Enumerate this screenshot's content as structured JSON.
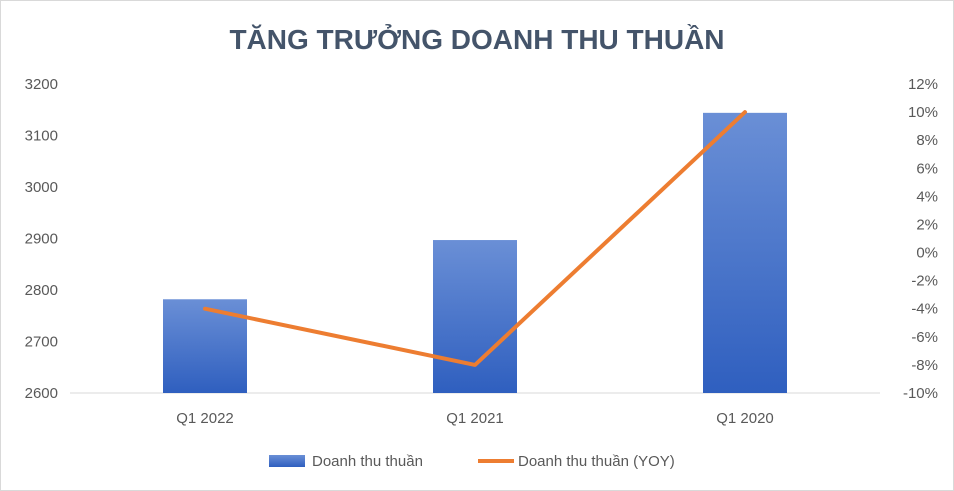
{
  "chart_data": {
    "type": "bar+line",
    "title": "TĂNG TRƯỞNG DOANH THU THUẦN",
    "categories": [
      "Q1 2022",
      "Q1 2021",
      "Q1 2020"
    ],
    "series": [
      {
        "name": "Doanh thu thuần",
        "type": "bar",
        "axis": "left",
        "values": [
          2782,
          2897,
          3144
        ],
        "color": "#4472c4"
      },
      {
        "name": "Doanh thu thuần (YOY)",
        "type": "line",
        "axis": "right",
        "values": [
          -4.0,
          -8.0,
          10.0
        ],
        "color": "#ed7d31"
      }
    ],
    "y_left": {
      "min": 2600,
      "max": 3200,
      "step": 100,
      "ticks": [
        "2600",
        "2700",
        "2800",
        "2900",
        "3000",
        "3100",
        "3200"
      ]
    },
    "y_right": {
      "min": -10,
      "max": 12,
      "step": 2,
      "ticks": [
        "-10%",
        "-8%",
        "-6%",
        "-4%",
        "-2%",
        "0%",
        "2%",
        "4%",
        "6%",
        "8%",
        "10%",
        "12%"
      ]
    },
    "grid": false,
    "legend_position": "bottom"
  }
}
